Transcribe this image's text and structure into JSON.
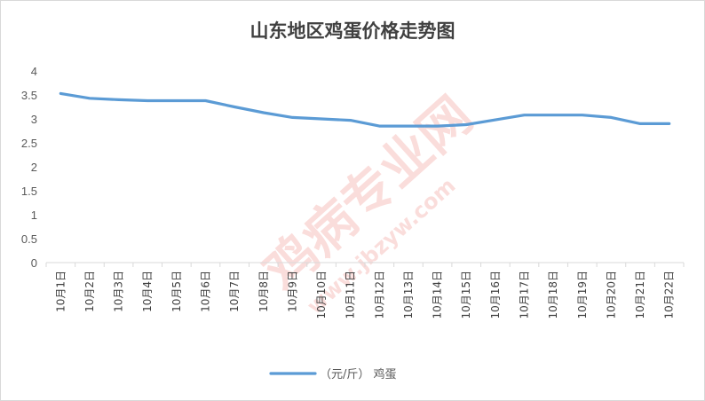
{
  "chart_data": {
    "type": "line",
    "title": "山东地区鸡蛋价格走势图",
    "categories": [
      "10月1日",
      "10月2日",
      "10月3日",
      "10月4日",
      "10月5日",
      "10月6日",
      "10月7日",
      "10月8日",
      "10月9日",
      "10月10日",
      "10月11日",
      "10月12日",
      "10月13日",
      "10月14日",
      "10月15日",
      "10月16日",
      "10月17日",
      "10月18日",
      "10月19日",
      "10月20日",
      "10月21日",
      "10月22日"
    ],
    "series": [
      {
        "name": "（元/斤） 鸡蛋",
        "values": [
          3.53,
          3.43,
          3.4,
          3.38,
          3.38,
          3.38,
          3.25,
          3.13,
          3.03,
          3.0,
          2.97,
          2.85,
          2.85,
          2.85,
          2.88,
          2.98,
          3.08,
          3.08,
          3.08,
          3.03,
          2.9,
          2.9
        ],
        "color": "#5b9bd5"
      }
    ],
    "yticks": [
      "0",
      "0.5",
      "1",
      "1.5",
      "2",
      "2.5",
      "3",
      "3.5",
      "4"
    ],
    "ylim": [
      0,
      4
    ],
    "grid": false,
    "legend": "bottom"
  },
  "watermark": {
    "text_main": "鸡病专业网",
    "text_url": "www.jbzyw.com",
    "color": "#e8473f"
  }
}
